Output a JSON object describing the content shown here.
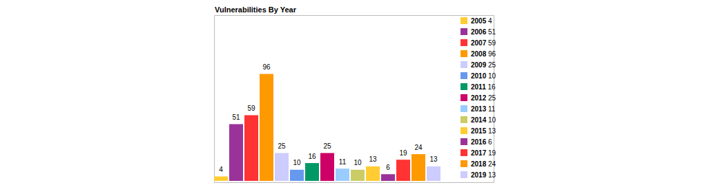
{
  "chart_data": {
    "type": "bar",
    "title": "Vulnerabilities By Year",
    "categories": [
      "2005",
      "2006",
      "2007",
      "2008",
      "2009",
      "2010",
      "2011",
      "2012",
      "2013",
      "2014",
      "2015",
      "2016",
      "2017",
      "2018",
      "2019"
    ],
    "values": [
      4,
      51,
      59,
      96,
      25,
      10,
      16,
      25,
      11,
      10,
      13,
      6,
      19,
      24,
      13
    ],
    "colors": [
      "#ffcc33",
      "#993399",
      "#ff3333",
      "#ff9900",
      "#ccccff",
      "#6699ee",
      "#009966",
      "#cc0066",
      "#99ccff",
      "#cccc66",
      "#ffcc33",
      "#993399",
      "#ff3333",
      "#ff9900",
      "#ccccff"
    ],
    "ylim": [
      0,
      150
    ],
    "grid": false,
    "data_labels": true,
    "tick_labels": false,
    "legend": "right"
  }
}
